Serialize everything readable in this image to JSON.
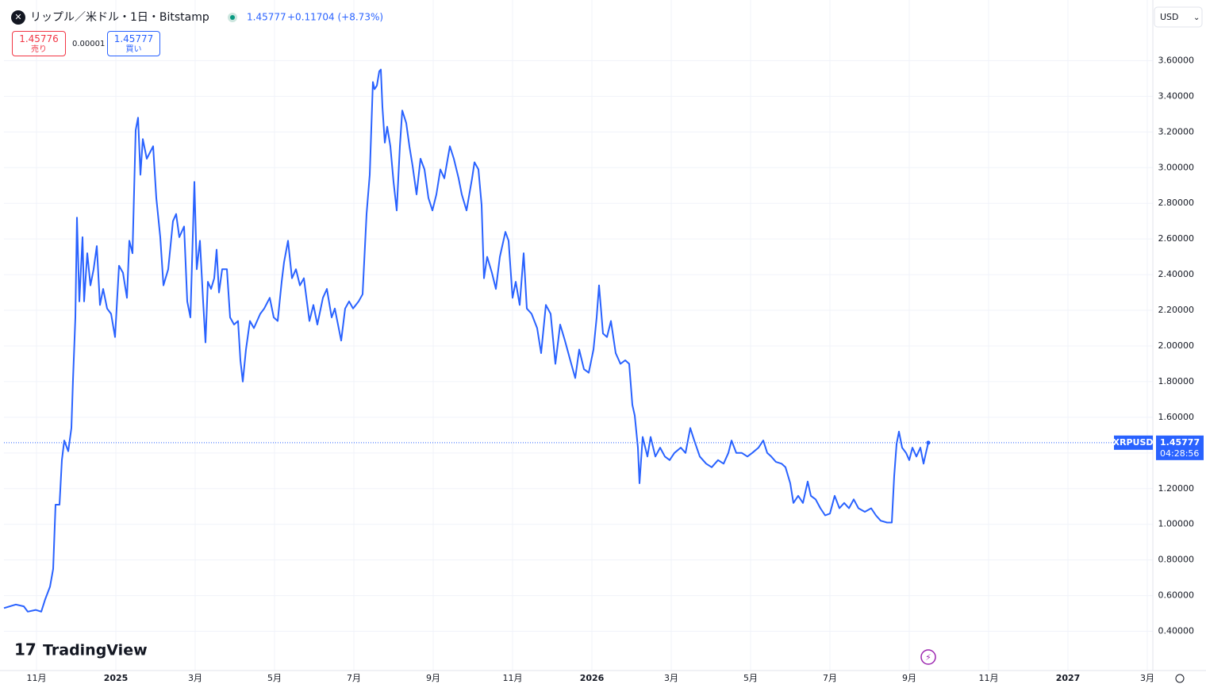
{
  "header": {
    "symbol": "リップル／米ドル・1日・Bitstamp",
    "change": "+0.11704 (+8.73%)",
    "sell_price": "1.45776",
    "sell_label": "売り",
    "spread": "0.00001",
    "buy_label": "買い",
    "currency": "USD",
    "logo": "TradingView"
  },
  "chart_data": {
    "type": "line",
    "ticker": "XRPUSD",
    "last_price": 1.45777,
    "countdown": "04:28:56",
    "xlim": [
      -0.82,
      28.14
    ],
    "xticks": [
      {
        "value": 0,
        "label": "11月"
      },
      {
        "value": 2,
        "label": "2025"
      },
      {
        "value": 4,
        "label": "3月"
      },
      {
        "value": 6,
        "label": "5月"
      },
      {
        "value": 8,
        "label": "7月"
      },
      {
        "value": 10,
        "label": "9月"
      },
      {
        "value": 12,
        "label": "11月"
      },
      {
        "value": 14,
        "label": "2026"
      },
      {
        "value": 16,
        "label": "3月"
      },
      {
        "value": 18,
        "label": "5月"
      },
      {
        "value": 20,
        "label": "7月"
      },
      {
        "value": 22,
        "label": "9月"
      },
      {
        "value": 24,
        "label": "11月"
      },
      {
        "value": 26,
        "label": "2027"
      },
      {
        "value": 28,
        "label": "3月"
      }
    ],
    "ylim": [
      0.18,
      3.94
    ],
    "yticks": [
      {
        "value": 0.4,
        "label": "0.40000"
      },
      {
        "value": 0.6,
        "label": "0.60000"
      },
      {
        "value": 0.8,
        "label": "0.80000"
      },
      {
        "value": 1.0,
        "label": "1.00000"
      },
      {
        "value": 1.2,
        "label": "1.20000"
      },
      {
        "value": 1.4,
        "label": "1.40000"
      },
      {
        "value": 1.6,
        "label": "1.60000"
      },
      {
        "value": 1.8,
        "label": "1.80000"
      },
      {
        "value": 2.0,
        "label": "2.00000"
      },
      {
        "value": 2.2,
        "label": "2.20000"
      },
      {
        "value": 2.4,
        "label": "2.40000"
      },
      {
        "value": 2.6,
        "label": "2.60000"
      },
      {
        "value": 2.8,
        "label": "2.80000"
      },
      {
        "value": 3.0,
        "label": "3.00000"
      },
      {
        "value": 3.2,
        "label": "3.20000"
      },
      {
        "value": 3.4,
        "label": "3.40000"
      },
      {
        "value": 3.6,
        "label": "3.60000"
      }
    ],
    "grid": true,
    "color": "#2962ff",
    "x": [
      -0.82,
      -0.52,
      -0.32,
      -0.22,
      -0.02,
      0.12,
      0.22,
      0.34,
      0.42,
      0.48,
      0.58,
      0.64,
      0.7,
      0.8,
      0.88,
      0.92,
      0.98,
      1.02,
      1.08,
      1.16,
      1.2,
      1.28,
      1.36,
      1.44,
      1.52,
      1.6,
      1.68,
      1.78,
      1.88,
      1.98,
      2.08,
      2.18,
      2.28,
      2.34,
      2.42,
      2.5,
      2.56,
      2.62,
      2.68,
      2.78,
      2.94,
      3.02,
      3.12,
      3.2,
      3.32,
      3.44,
      3.52,
      3.6,
      3.72,
      3.8,
      3.88,
      3.98,
      4.04,
      4.12,
      4.2,
      4.26,
      4.32,
      4.4,
      4.48,
      4.54,
      4.6,
      4.68,
      4.8,
      4.88,
      4.98,
      5.08,
      5.14,
      5.2,
      5.28,
      5.38,
      5.48,
      5.64,
      5.74,
      5.88,
      5.98,
      6.08,
      6.18,
      6.24,
      6.34,
      6.44,
      6.54,
      6.64,
      6.74,
      6.88,
      6.98,
      7.08,
      7.22,
      7.32,
      7.44,
      7.52,
      7.68,
      7.78,
      7.88,
      7.98,
      8.12,
      8.22,
      8.32,
      8.4,
      8.48,
      8.52,
      8.58,
      8.64,
      8.68,
      8.72,
      8.78,
      8.84,
      8.92,
      9.0,
      9.08,
      9.16,
      9.22,
      9.32,
      9.4,
      9.48,
      9.58,
      9.68,
      9.78,
      9.88,
      9.98,
      10.08,
      10.18,
      10.28,
      10.42,
      10.52,
      10.64,
      10.72,
      10.84,
      10.98,
      11.04,
      11.14,
      11.22,
      11.28,
      11.36,
      11.48,
      11.58,
      11.68,
      11.82,
      11.9,
      12.0,
      12.08,
      12.18,
      12.28,
      12.36,
      12.48,
      12.62,
      12.72,
      12.84,
      12.96,
      13.08,
      13.2,
      13.32,
      13.48,
      13.58,
      13.68,
      13.8,
      13.92,
      14.04,
      14.12,
      14.18,
      14.28,
      14.38,
      14.48,
      14.6,
      14.72,
      14.84,
      14.94,
      15.02,
      15.08,
      15.16,
      15.2,
      15.28,
      15.4,
      15.48,
      15.6,
      15.72,
      15.84,
      15.96,
      16.08,
      16.24,
      16.36,
      16.48,
      16.58,
      16.72,
      16.88,
      17.02,
      17.18,
      17.32,
      17.44,
      17.52,
      17.64,
      17.78,
      17.92,
      18.04,
      18.2,
      18.32,
      18.42,
      18.52,
      18.64,
      18.78,
      18.88,
      19.0,
      19.08,
      19.2,
      19.32,
      19.44,
      19.52,
      19.64,
      19.76,
      19.88,
      20.0,
      20.12,
      20.24,
      20.36,
      20.48,
      20.6,
      20.72,
      20.88,
      21.04,
      21.16,
      21.28,
      21.44,
      21.56,
      21.62,
      21.68,
      21.74,
      21.82,
      21.92,
      22.0,
      22.08,
      22.18,
      22.28,
      22.36,
      22.42,
      22.48
    ],
    "values": [
      0.53,
      0.55,
      0.54,
      0.51,
      0.52,
      0.51,
      0.58,
      0.65,
      0.75,
      1.11,
      1.11,
      1.36,
      1.47,
      1.41,
      1.54,
      1.81,
      2.16,
      2.72,
      2.25,
      2.61,
      2.25,
      2.52,
      2.34,
      2.43,
      2.56,
      2.23,
      2.32,
      2.21,
      2.18,
      2.05,
      2.45,
      2.41,
      2.27,
      2.59,
      2.52,
      3.21,
      3.28,
      2.96,
      3.16,
      3.05,
      3.12,
      2.83,
      2.61,
      2.34,
      2.43,
      2.7,
      2.74,
      2.61,
      2.67,
      2.25,
      2.16,
      2.92,
      2.43,
      2.59,
      2.25,
      2.02,
      2.36,
      2.32,
      2.38,
      2.54,
      2.3,
      2.43,
      2.43,
      2.16,
      2.12,
      2.14,
      1.92,
      1.8,
      1.98,
      2.14,
      2.1,
      2.18,
      2.21,
      2.27,
      2.16,
      2.14,
      2.36,
      2.47,
      2.59,
      2.38,
      2.43,
      2.34,
      2.38,
      2.14,
      2.23,
      2.12,
      2.27,
      2.32,
      2.16,
      2.21,
      2.03,
      2.21,
      2.25,
      2.21,
      2.25,
      2.29,
      2.74,
      2.96,
      3.48,
      3.44,
      3.46,
      3.54,
      3.55,
      3.34,
      3.14,
      3.23,
      3.12,
      2.92,
      2.76,
      3.12,
      3.32,
      3.25,
      3.12,
      3.01,
      2.85,
      3.05,
      2.99,
      2.83,
      2.76,
      2.85,
      2.99,
      2.94,
      3.12,
      3.05,
      2.94,
      2.85,
      2.76,
      2.94,
      3.03,
      2.99,
      2.79,
      2.38,
      2.5,
      2.41,
      2.32,
      2.5,
      2.64,
      2.59,
      2.27,
      2.36,
      2.23,
      2.52,
      2.21,
      2.18,
      2.1,
      1.96,
      2.23,
      2.18,
      1.9,
      2.12,
      2.03,
      1.9,
      1.82,
      1.98,
      1.87,
      1.85,
      1.98,
      2.16,
      2.34,
      2.07,
      2.05,
      2.14,
      1.96,
      1.9,
      1.92,
      1.9,
      1.67,
      1.61,
      1.43,
      1.23,
      1.49,
      1.38,
      1.49,
      1.38,
      1.43,
      1.38,
      1.36,
      1.4,
      1.43,
      1.4,
      1.54,
      1.47,
      1.38,
      1.34,
      1.32,
      1.36,
      1.34,
      1.4,
      1.47,
      1.4,
      1.4,
      1.38,
      1.4,
      1.43,
      1.47,
      1.4,
      1.38,
      1.35,
      1.34,
      1.32,
      1.23,
      1.12,
      1.16,
      1.12,
      1.24,
      1.16,
      1.14,
      1.09,
      1.05,
      1.06,
      1.16,
      1.09,
      1.12,
      1.09,
      1.14,
      1.09,
      1.07,
      1.09,
      1.05,
      1.02,
      1.01,
      1.01,
      1.27,
      1.45,
      1.52,
      1.43,
      1.4,
      1.36,
      1.43,
      1.38,
      1.43,
      1.34,
      1.4,
      1.45777
    ]
  }
}
